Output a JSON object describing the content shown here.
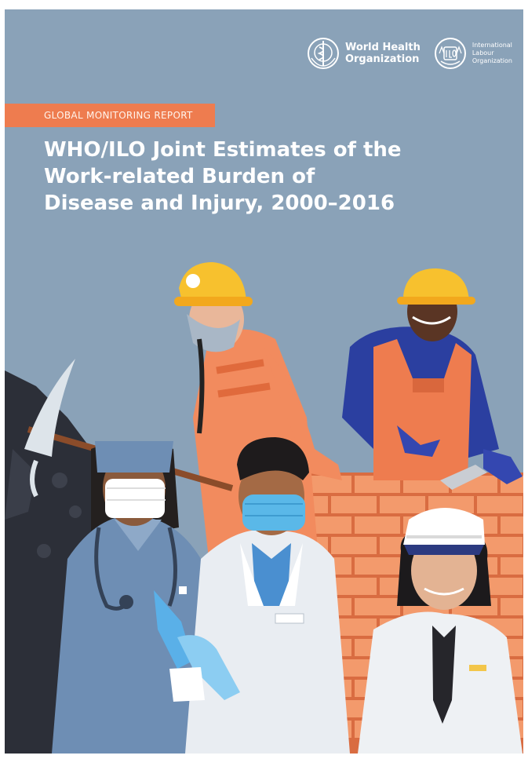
{
  "organizations": {
    "who": {
      "name_line1": "World Health",
      "name_line2": "Organization",
      "icon": "who-emblem-icon"
    },
    "ilo": {
      "name_line1": "International",
      "name_line2": "Labour",
      "name_line3": "Organization",
      "icon": "ilo-emblem-icon"
    }
  },
  "report_label": "GLOBAL MONITORING REPORT",
  "title": {
    "line1": "WHO/ILO Joint Estimates of the",
    "line2": "Work-related Burden of",
    "line3": "Disease and Injury, 2000–2016"
  },
  "colors": {
    "background": "#8aa2b8",
    "accent_orange": "#ee7c4f",
    "helmet_yellow": "#f7c12e",
    "brick": "#f28b5e"
  },
  "illustration": {
    "figures": [
      "miner-with-respirator",
      "construction-worker-with-trowel",
      "nurse-with-stethoscope",
      "doctor-with-face-mask",
      "officer-with-cap-and-tie"
    ]
  }
}
